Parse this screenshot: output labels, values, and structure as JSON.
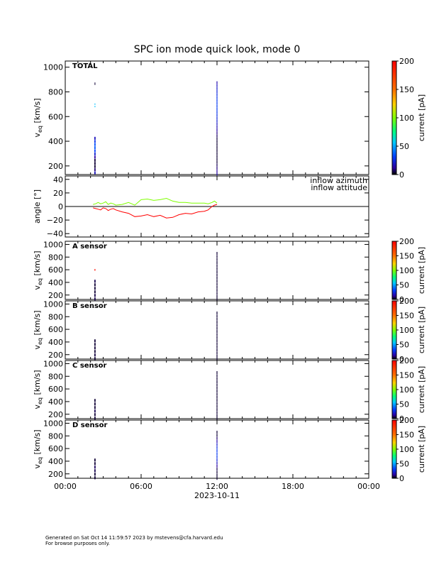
{
  "title": "SPC ion mode quick look, mode 0",
  "date_label": "2023-10-11",
  "time_ticks": [
    "00:00",
    "06:00",
    "12:00",
    "18:00",
    "00:00"
  ],
  "footer": {
    "line1": "Generated on Sat Oct 14 11:59:57 2023 by mstevens@cfa.harvard.edu",
    "line2": "For browse purposes only."
  },
  "colors": {
    "inflow_azimuth": "#ff0000",
    "inflow_altitude": "#7fff00",
    "axis": "#000000"
  },
  "chart_data": [
    {
      "type": "heatmap",
      "panel": "TOTAL",
      "ylabel": "v_eq [km/s]",
      "ylabel_main": "v",
      "ylabel_sub": "eq",
      "ylabel_rest": " [km/s]",
      "ylim": [
        130,
        1050
      ],
      "yticks": [
        "200",
        "400",
        "600",
        "800",
        "1000"
      ],
      "ytick_values": [
        200,
        400,
        600,
        800,
        1000
      ],
      "xlim_hours": [
        0,
        24
      ],
      "colorbar": {
        "label": "current [pA]",
        "ticks": [
          "0",
          "50",
          "100",
          "150",
          "200"
        ],
        "tick_values": [
          0,
          50,
          100,
          150,
          200
        ],
        "range": [
          0,
          200
        ]
      },
      "streaks": [
        {
          "t_hours": 2.35,
          "width_hours": 0.1,
          "v_from": 150,
          "v_to": 430,
          "current": 30
        },
        {
          "t_hours": 2.35,
          "width_hours": 0.05,
          "v_from": 860,
          "v_to": 870,
          "current": 5
        },
        {
          "t_hours": 2.35,
          "width_hours": 0.05,
          "v_from": 680,
          "v_to": 700,
          "current": 90
        },
        {
          "t_hours": 12.0,
          "width_hours": 0.05,
          "v_from": 140,
          "v_to": 880,
          "current": 25
        }
      ]
    },
    {
      "type": "line",
      "panel": "angle",
      "ylabel": "angle [°]",
      "ylim": [
        -45,
        45
      ],
      "yticks": [
        "−40",
        "−20",
        "0",
        "20",
        "40"
      ],
      "ytick_values": [
        -40,
        -20,
        0,
        20,
        40
      ],
      "series": [
        {
          "name": "inflow azimuth",
          "x_hours": [
            2.2,
            2.4,
            2.6,
            2.8,
            3.0,
            3.2,
            3.4,
            3.6,
            3.8,
            4.0,
            4.5,
            5.0,
            5.5,
            6.0,
            6.5,
            7.0,
            7.5,
            8.0,
            8.5,
            9.0,
            9.5,
            10.0,
            10.5,
            11.0,
            11.3,
            11.6,
            11.8,
            12.0
          ],
          "values": [
            -2,
            -3,
            -4,
            -5,
            -2,
            -3,
            -6,
            -4,
            -3,
            -5,
            -8,
            -10,
            -15,
            -14,
            -12,
            -15,
            -13,
            -17,
            -16,
            -12,
            -10,
            -11,
            -8,
            -7,
            -5,
            0,
            2,
            3
          ]
        },
        {
          "name": "inflow attitude",
          "x_hours": [
            2.2,
            2.4,
            2.6,
            2.8,
            3.0,
            3.2,
            3.4,
            3.6,
            3.8,
            4.0,
            4.5,
            5.0,
            5.5,
            6.0,
            6.5,
            7.0,
            7.5,
            8.0,
            8.5,
            9.0,
            9.5,
            10.0,
            10.5,
            11.0,
            11.3,
            11.6,
            11.8,
            12.0
          ],
          "values": [
            3,
            4,
            6,
            4,
            5,
            7,
            3,
            5,
            4,
            2,
            3,
            6,
            2,
            10,
            11,
            9,
            10,
            12,
            8,
            6,
            6,
            5,
            5,
            5,
            4,
            6,
            8,
            5
          ]
        }
      ]
    },
    {
      "type": "heatmap",
      "panel": "A sensor",
      "ylabel": "v_eq [km/s]",
      "ylabel_main": "v",
      "ylabel_sub": "eq",
      "ylabel_rest": " [km/s]",
      "ylim": [
        130,
        1050
      ],
      "yticks": [
        "200",
        "400",
        "600",
        "800",
        "1000"
      ],
      "ytick_values": [
        200,
        400,
        600,
        800,
        1000
      ],
      "xlim_hours": [
        0,
        24
      ],
      "colorbar": {
        "label": "current [pA]",
        "ticks": [
          "0",
          "50",
          "100",
          "150",
          "200"
        ],
        "tick_values": [
          0,
          50,
          100,
          150,
          200
        ],
        "range": [
          0,
          200
        ]
      },
      "streaks": [
        {
          "t_hours": 2.35,
          "width_hours": 0.1,
          "v_from": 150,
          "v_to": 430,
          "current": 5
        },
        {
          "t_hours": 2.35,
          "width_hours": 0.05,
          "v_from": 590,
          "v_to": 600,
          "current": 170
        },
        {
          "t_hours": 12.0,
          "width_hours": 0.05,
          "v_from": 140,
          "v_to": 870,
          "current": 3
        }
      ]
    },
    {
      "type": "heatmap",
      "panel": "B sensor",
      "ylabel": "v_eq [km/s]",
      "ylabel_main": "v",
      "ylabel_sub": "eq",
      "ylabel_rest": " [km/s]",
      "ylim": [
        130,
        1050
      ],
      "yticks": [
        "200",
        "400",
        "600",
        "800",
        "1000"
      ],
      "ytick_values": [
        200,
        400,
        600,
        800,
        1000
      ],
      "xlim_hours": [
        0,
        24
      ],
      "colorbar": {
        "label": "current [pA]",
        "ticks": [
          "0",
          "50",
          "100",
          "150",
          "200"
        ],
        "tick_values": [
          0,
          50,
          100,
          150,
          200
        ],
        "range": [
          0,
          200
        ]
      },
      "streaks": [
        {
          "t_hours": 2.35,
          "width_hours": 0.1,
          "v_from": 150,
          "v_to": 430,
          "current": 4
        },
        {
          "t_hours": 12.0,
          "width_hours": 0.05,
          "v_from": 140,
          "v_to": 870,
          "current": 3
        }
      ]
    },
    {
      "type": "heatmap",
      "panel": "C sensor",
      "ylabel": "v_eq [km/s]",
      "ylabel_main": "v",
      "ylabel_sub": "eq",
      "ylabel_rest": " [km/s]",
      "ylim": [
        130,
        1050
      ],
      "yticks": [
        "200",
        "400",
        "600",
        "800",
        "1000"
      ],
      "ytick_values": [
        200,
        400,
        600,
        800,
        1000
      ],
      "xlim_hours": [
        0,
        24
      ],
      "colorbar": {
        "label": "current [pA]",
        "ticks": [
          "0",
          "50",
          "100",
          "150",
          "200"
        ],
        "tick_values": [
          0,
          50,
          100,
          150,
          200
        ],
        "range": [
          0,
          200
        ]
      },
      "streaks": [
        {
          "t_hours": 2.35,
          "width_hours": 0.1,
          "v_from": 150,
          "v_to": 430,
          "current": 5
        },
        {
          "t_hours": 12.0,
          "width_hours": 0.05,
          "v_from": 140,
          "v_to": 870,
          "current": 3
        }
      ]
    },
    {
      "type": "heatmap",
      "panel": "D sensor",
      "ylabel": "v_eq [km/s]",
      "ylabel_main": "v",
      "ylabel_sub": "eq",
      "ylabel_rest": " [km/s]",
      "ylim": [
        130,
        1050
      ],
      "yticks": [
        "200",
        "400",
        "600",
        "800",
        "1000"
      ],
      "ytick_values": [
        200,
        400,
        600,
        800,
        1000
      ],
      "xlim_hours": [
        0,
        24
      ],
      "colorbar": {
        "label": "current [pA]",
        "ticks": [
          "0",
          "50",
          "100",
          "150",
          "200"
        ],
        "tick_values": [
          0,
          50,
          100,
          150,
          200
        ],
        "range": [
          0,
          200
        ]
      },
      "streaks": [
        {
          "t_hours": 2.35,
          "width_hours": 0.1,
          "v_from": 150,
          "v_to": 430,
          "current": 6
        },
        {
          "t_hours": 12.0,
          "width_hours": 0.05,
          "v_from": 140,
          "v_to": 870,
          "current": 25
        }
      ]
    }
  ]
}
